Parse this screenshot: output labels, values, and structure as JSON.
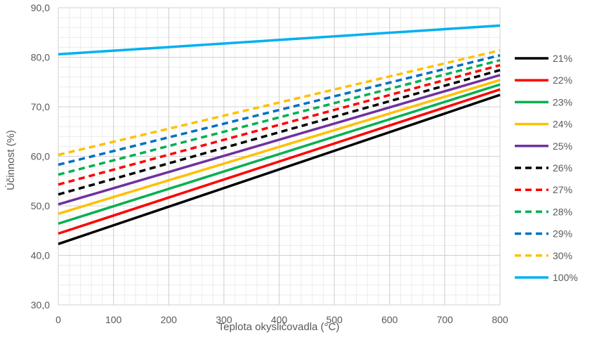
{
  "chart_data": {
    "type": "line",
    "title": "",
    "xlabel": "Teplota okysličovadla (°C)",
    "ylabel": "Účinnost (%)",
    "xlim": [
      0,
      800
    ],
    "ylim": [
      30,
      90
    ],
    "x_ticks": [
      0,
      100,
      200,
      300,
      400,
      500,
      600,
      700,
      800
    ],
    "x_tick_labels": [
      "0",
      "100",
      "200",
      "300",
      "400",
      "500",
      "600",
      "700",
      "800"
    ],
    "y_ticks": [
      30,
      40,
      50,
      60,
      70,
      80,
      90
    ],
    "y_tick_labels": [
      "30,0",
      "40,0",
      "50,0",
      "60,0",
      "70,0",
      "80,0",
      "90,0"
    ],
    "x_minor_step": 20,
    "y_minor_step": 2,
    "grid": true,
    "legend_position": "right",
    "x": [
      0,
      800
    ],
    "series": [
      {
        "name": "21%",
        "values": [
          42.3,
          72.4
        ],
        "color": "#000000",
        "dash": "solid"
      },
      {
        "name": "22%",
        "values": [
          44.4,
          73.5
        ],
        "color": "#ff0000",
        "dash": "solid"
      },
      {
        "name": "23%",
        "values": [
          46.4,
          74.5
        ],
        "color": "#00b050",
        "dash": "solid"
      },
      {
        "name": "24%",
        "values": [
          48.4,
          75.4
        ],
        "color": "#ffc000",
        "dash": "solid"
      },
      {
        "name": "25%",
        "values": [
          50.3,
          76.4
        ],
        "color": "#7030a0",
        "dash": "solid"
      },
      {
        "name": "26%",
        "values": [
          52.3,
          77.4
        ],
        "color": "#000000",
        "dash": "dashed"
      },
      {
        "name": "27%",
        "values": [
          54.3,
          78.4
        ],
        "color": "#ff0000",
        "dash": "dashed"
      },
      {
        "name": "28%",
        "values": [
          56.3,
          79.4
        ],
        "color": "#00b050",
        "dash": "dashed"
      },
      {
        "name": "29%",
        "values": [
          58.3,
          80.4
        ],
        "color": "#0070c0",
        "dash": "dashed"
      },
      {
        "name": "30%",
        "values": [
          60.3,
          81.4
        ],
        "color": "#ffc000",
        "dash": "dashed"
      },
      {
        "name": "100%",
        "values": [
          80.6,
          86.4
        ],
        "color": "#00b0f0",
        "dash": "solid"
      }
    ]
  }
}
